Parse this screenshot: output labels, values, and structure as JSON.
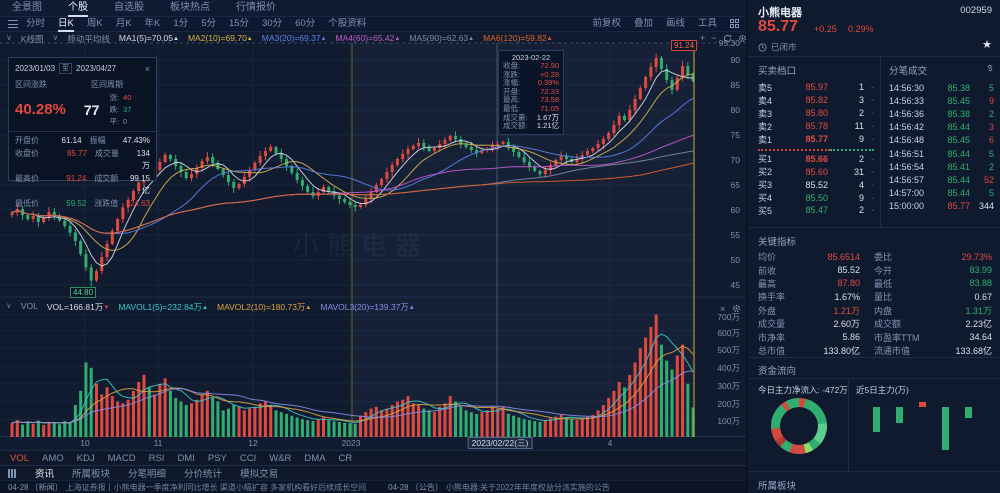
{
  "colors": {
    "up": "#e2493e",
    "down": "#2fae6f",
    "flat": "#d8e0ee",
    "yellow": "#c9a227"
  },
  "topnav": {
    "items": [
      {
        "label": "全景图",
        "active": false
      },
      {
        "label": "个股",
        "active": true
      },
      {
        "label": "自选股",
        "active": false
      },
      {
        "label": "板块热点",
        "active": false
      },
      {
        "label": "行情报价",
        "active": false
      }
    ]
  },
  "toolbar": {
    "left": [
      {
        "label": "分时",
        "active": false
      },
      {
        "label": "日K",
        "active": true
      },
      {
        "label": "周K",
        "active": false
      },
      {
        "label": "月K",
        "active": false
      },
      {
        "label": "年K",
        "active": false
      },
      {
        "label": "1分",
        "active": false
      },
      {
        "label": "5分",
        "active": false
      },
      {
        "label": "15分",
        "active": false
      },
      {
        "label": "30分",
        "active": false
      },
      {
        "label": "60分",
        "active": false
      },
      {
        "label": "个股资料",
        "active": false
      }
    ],
    "right": [
      "前复权",
      "叠加",
      "画线",
      "工具"
    ]
  },
  "legend": {
    "caret": "∨",
    "kline_label": "K线图",
    "ma_label": "移动平均线",
    "entries": [
      {
        "text": "MA1(5)=70.05",
        "color": "#d8dde8"
      },
      {
        "text": "MA2(10)=69.70",
        "color": "#d9b44a"
      },
      {
        "text": "MA3(20)=69.37",
        "color": "#5c82e8"
      },
      {
        "text": "MA4(60)=65.42",
        "color": "#c45ad2"
      },
      {
        "text": "MA5(90)=62.63",
        "color": "#7d8ca6"
      },
      {
        "text": "MA6(120)=59.82",
        "color": "#e2622b"
      }
    ]
  },
  "vol_legend": {
    "caret": "∨",
    "vol_label": "VOL",
    "entries": [
      {
        "text": "VOL=166.81万",
        "arrow": "▼",
        "color": "#d8dde8",
        "arrow_color": "#e2493e"
      },
      {
        "text": "MAVOL1(5)=232.84万",
        "arrow": "▲",
        "color": "#3cc8c8",
        "arrow_color": "#3cc8c8"
      },
      {
        "text": "MAVOL2(10)=180.73万",
        "arrow": "▲",
        "color": "#dca43e",
        "arrow_color": "#dca43e"
      },
      {
        "text": "MAVOL3(20)=139.37万",
        "arrow": "▲",
        "color": "#8a8ce8",
        "arrow_color": "#8a8ce8"
      }
    ]
  },
  "range_panel": {
    "start": "2023/01/03",
    "to": "至",
    "end": "2023/04/27",
    "close": "×",
    "chg_label": "区间涨跌",
    "period_label": "区间周期",
    "chg": "40.28%",
    "period": "77",
    "up_label": "涨:",
    "up": "40",
    "down_label": "跌:",
    "down": "37",
    "flat_label": "平:",
    "flat": "0",
    "rows": [
      {
        "l1": "开盘价",
        "v1": "61.14",
        "c1": "flat",
        "l2": "振幅",
        "v2": "47.43%",
        "c2": "flat"
      },
      {
        "l1": "收盘价",
        "v1": "85.77",
        "c1": "up",
        "l2": "成交量",
        "v2": "134万",
        "c2": "flat"
      },
      {
        "l1": "最高价",
        "v1": "91.24",
        "c1": "up",
        "l2": "成交额",
        "v2": "99.15亿",
        "c2": "flat"
      },
      {
        "l1": "最低价",
        "v1": "59.52",
        "c1": "down",
        "l2": "涨跌值",
        "v2": "24.63",
        "c2": "up"
      }
    ]
  },
  "tooltip": {
    "date": "2023-02-22",
    "rows": [
      {
        "label": "收盘:",
        "value": "72.90",
        "color": "up"
      },
      {
        "label": "涨跌:",
        "value": "+0.28",
        "color": "up"
      },
      {
        "label": "涨幅:",
        "value": "0.39%",
        "color": "up"
      },
      {
        "label": "开盘:",
        "value": "72.33",
        "color": "up"
      },
      {
        "label": "最高:",
        "value": "73.58",
        "color": "up"
      },
      {
        "label": "最低:",
        "value": "71.05",
        "color": "up"
      },
      {
        "label": "成交量:",
        "value": "1.67万",
        "color": "flat"
      },
      {
        "label": "成交额:",
        "value": "1.21亿",
        "color": "flat"
      }
    ]
  },
  "markers": {
    "high": "91.24",
    "low": "44.80"
  },
  "indicator_tabs": [
    {
      "label": "VOL",
      "active": true
    },
    {
      "label": "AMO",
      "active": false
    },
    {
      "label": "KDJ",
      "active": false
    },
    {
      "label": "MACD",
      "active": false
    },
    {
      "label": "RSI",
      "active": false
    },
    {
      "label": "DMI",
      "active": false
    },
    {
      "label": "PSY",
      "active": false
    },
    {
      "label": "CCI",
      "active": false
    },
    {
      "label": "W&R",
      "active": false
    },
    {
      "label": "DMA",
      "active": false
    },
    {
      "label": "CR",
      "active": false
    }
  ],
  "bottom_tabs": [
    {
      "label": "资讯",
      "active": true
    },
    {
      "label": "所属板块",
      "active": false
    },
    {
      "label": "分笔明细",
      "active": false
    },
    {
      "label": "分价统计",
      "active": false
    },
    {
      "label": "模拟交易",
      "active": false
    }
  ],
  "ticker": [
    {
      "date": "04-28",
      "tag": "〔新闻〕",
      "text": "上海证券报丨小熊电器一季度净利同比增长 渠道小幅扩容 多家机构看好后续成长空间"
    },
    {
      "date": "04-28",
      "tag": "〔公告〕",
      "text": "小熊电器:关于2022年年度权益分派实施的公告"
    }
  ],
  "stock": {
    "name": "小熊电器",
    "code": "002959",
    "price": "85.77",
    "change": "+0.25",
    "pct": "0.29%",
    "status": "已闭市",
    "star": "★"
  },
  "order_book": {
    "title": "买卖档口",
    "prev_close": 85.52,
    "asks": [
      {
        "level": "卖5",
        "price": "85.97",
        "count": "1"
      },
      {
        "level": "卖4",
        "price": "85.82",
        "count": "3"
      },
      {
        "level": "卖3",
        "price": "85.80",
        "count": "2"
      },
      {
        "level": "卖2",
        "price": "85.78",
        "count": "11"
      },
      {
        "level": "卖1",
        "price": "85.77",
        "count": "9"
      }
    ],
    "bids": [
      {
        "level": "买1",
        "price": "85.66",
        "count": "2"
      },
      {
        "level": "买2",
        "price": "85.60",
        "count": "31"
      },
      {
        "level": "买3",
        "price": "85.52",
        "count": "4"
      },
      {
        "level": "买4",
        "price": "85.50",
        "count": "9"
      },
      {
        "level": "买5",
        "price": "85.47",
        "count": "2"
      }
    ]
  },
  "tick_list": {
    "title": "分笔成交",
    "rows": [
      {
        "time": "14:56:30",
        "price": "85.38",
        "pc": "down",
        "count": "5",
        "cc": "down"
      },
      {
        "time": "14:56:33",
        "price": "85.45",
        "pc": "down",
        "count": "9",
        "cc": "up"
      },
      {
        "time": "14:56:36",
        "price": "85.38",
        "pc": "down",
        "count": "2",
        "cc": "down"
      },
      {
        "time": "14:56:42",
        "price": "85.44",
        "pc": "down",
        "count": "3",
        "cc": "up"
      },
      {
        "time": "14:56:48",
        "price": "85.45",
        "pc": "down",
        "count": "6",
        "cc": "up"
      },
      {
        "time": "14:56:51",
        "price": "85.44",
        "pc": "down",
        "count": "5",
        "cc": "down"
      },
      {
        "time": "14:56:54",
        "price": "85.41",
        "pc": "down",
        "count": "2",
        "cc": "down"
      },
      {
        "time": "14:56:57",
        "price": "85.44",
        "pc": "down",
        "count": "52",
        "cc": "up"
      },
      {
        "time": "14:57:00",
        "price": "85.44",
        "pc": "down",
        "count": "5",
        "cc": "down"
      },
      {
        "time": "15:00:00",
        "price": "85.77",
        "pc": "up",
        "count": "344",
        "cc": "flat"
      }
    ]
  },
  "key_stats": {
    "title": "关键指标",
    "rows": [
      {
        "l1": "均价",
        "v1": "85.6514",
        "c1": "up",
        "l2": "委比",
        "v2": "29.73%",
        "c2": "up"
      },
      {
        "l1": "前收",
        "v1": "85.52",
        "c1": "flat",
        "l2": "今开",
        "v2": "83.99",
        "c2": "down"
      },
      {
        "l1": "最高",
        "v1": "87.80",
        "c1": "up",
        "l2": "最低",
        "v2": "83.88",
        "c2": "down"
      },
      {
        "l1": "换手率",
        "v1": "1.67%",
        "c1": "flat",
        "l2": "量比",
        "v2": "0.67",
        "c2": "flat"
      },
      {
        "l1": "外盘",
        "v1": "1.21万",
        "c1": "up",
        "l2": "内盘",
        "v2": "1.31万",
        "c2": "down"
      },
      {
        "l1": "成交量",
        "v1": "2.60万",
        "c1": "flat",
        "l2": "成交额",
        "v2": "2.23亿",
        "c2": "flat"
      },
      {
        "l1": "市净率",
        "v1": "5.86",
        "c1": "flat",
        "l2": "市盈率TTM",
        "v2": "34.64",
        "c2": "flat"
      },
      {
        "l1": "总市值",
        "v1": "133.80亿",
        "c1": "flat",
        "l2": "流通市值",
        "v2": "133.68亿",
        "c2": "flat"
      }
    ]
  },
  "fund_flow": {
    "title": "资金流向",
    "today_label": "今日主力净流入: -472万",
    "five_label": "近5日主力(万)",
    "bars": [
      -300,
      -190,
      60,
      -520,
      -130
    ],
    "donut": [
      {
        "c": "#d24b41",
        "d": 14
      },
      {
        "c": "#2fae6f",
        "d": 70
      },
      {
        "c": "#5ecb8f",
        "d": 46
      },
      {
        "c": "#2fae6f",
        "d": 20
      },
      {
        "c": "#8fdc6a",
        "d": 16
      },
      {
        "c": "#d24b41",
        "d": 34
      },
      {
        "c": "#2fae6f",
        "d": 22
      },
      {
        "c": "#b03a30",
        "d": 16
      },
      {
        "c": "#d24b41",
        "d": 26
      },
      {
        "c": "#2fae6f",
        "d": 56
      },
      {
        "c": "#d24b41",
        "d": 12
      },
      {
        "c": "#2fae6f",
        "d": 28
      }
    ]
  },
  "sectors": {
    "title": "所属板块"
  },
  "chart_data": {
    "type": "candlestick",
    "title": "小熊电器 日K",
    "watermark": "小熊电器",
    "x0": 12,
    "dx": 5.28,
    "price_axis": {
      "min": 45,
      "max": 95.3,
      "ticks": [
        "95.30",
        "90",
        "85",
        "80",
        "75",
        "70",
        "65",
        "60",
        "55",
        "50",
        "45"
      ]
    },
    "vol_axis": {
      "ticks": [
        "700万",
        "600万",
        "500万",
        "400万",
        "300万",
        "200万",
        "100万"
      ]
    },
    "x_ticks": [
      {
        "label": "10",
        "x": 85,
        "boxed": false
      },
      {
        "label": "11",
        "x": 158,
        "boxed": false
      },
      {
        "label": "12",
        "x": 253,
        "boxed": false
      },
      {
        "label": "2023",
        "x": 351,
        "boxed": false
      },
      {
        "label": "2023/02/22(三)",
        "x": 500,
        "boxed": true
      },
      {
        "label": "4",
        "x": 610,
        "boxed": false
      }
    ],
    "selection": {
      "x1": 352,
      "x2": 694
    },
    "crosshair_x": 497,
    "high_marker": {
      "index": 122,
      "price": 91.24
    },
    "low_marker": {
      "index": 15,
      "price": 44.8
    },
    "ma": {
      "windows": [
        5,
        10,
        20,
        60,
        90,
        120
      ],
      "colors": [
        "#d8dde8",
        "#d9b44a",
        "#5c82e8",
        "#c45ad2",
        "#7d8ca6",
        "#e2622b"
      ]
    },
    "mavol": {
      "windows": [
        5,
        10,
        20
      ],
      "colors": [
        "#3cc8c8",
        "#dca43e",
        "#8a8ce8"
      ]
    },
    "closes": [
      59.5,
      60.2,
      59.0,
      58.2,
      58.8,
      57.6,
      58.4,
      59.6,
      58.8,
      57.9,
      56.8,
      55.5,
      53.8,
      51.2,
      48.5,
      45.9,
      47.8,
      50.6,
      53.2,
      55.8,
      58.2,
      60.5,
      62.0,
      63.8,
      65.5,
      67.2,
      66.4,
      68.0,
      69.6,
      71.0,
      70.2,
      68.8,
      67.6,
      66.4,
      67.2,
      68.4,
      69.8,
      70.6,
      69.4,
      68.2,
      67.0,
      65.6,
      64.4,
      65.2,
      66.6,
      68.0,
      69.4,
      70.8,
      71.8,
      72.6,
      71.4,
      70.2,
      68.8,
      67.4,
      66.0,
      64.8,
      63.6,
      62.8,
      63.6,
      64.6,
      63.8,
      62.9,
      62.2,
      61.6,
      61.0,
      60.6,
      61.1,
      62.2,
      63.6,
      65.0,
      66.2,
      67.6,
      69.0,
      70.2,
      71.2,
      72.2,
      72.8,
      73.4,
      72.6,
      71.8,
      72.4,
      73.2,
      74.0,
      74.8,
      74.2,
      73.2,
      72.6,
      72.0,
      71.4,
      72.0,
      72.3,
      72.9,
      73.2,
      73.6,
      72.6,
      71.6,
      70.6,
      69.6,
      68.6,
      67.8,
      67.2,
      68.0,
      69.0,
      70.0,
      70.8,
      70.2,
      69.6,
      70.2,
      71.0,
      71.8,
      72.4,
      73.2,
      74.2,
      75.4,
      77.0,
      78.8,
      78.0,
      80.0,
      82.2,
      84.4,
      86.6,
      88.6,
      90.4,
      88.2,
      86.0,
      84.0,
      86.4,
      88.8,
      87.0,
      85.77
    ],
    "volumes": [
      80,
      95,
      70,
      88,
      75,
      92,
      68,
      85,
      78,
      72,
      90,
      84,
      180,
      260,
      420,
      390,
      300,
      240,
      280,
      230,
      200,
      190,
      210,
      260,
      310,
      350,
      280,
      240,
      300,
      330,
      260,
      220,
      200,
      180,
      190,
      210,
      240,
      260,
      220,
      200,
      150,
      160,
      180,
      170,
      150,
      160,
      170,
      190,
      200,
      180,
      150,
      140,
      130,
      120,
      110,
      100,
      95,
      90,
      100,
      110,
      95,
      88,
      85,
      80,
      78,
      75,
      120,
      140,
      160,
      170,
      150,
      160,
      180,
      200,
      210,
      230,
      190,
      180,
      160,
      150,
      140,
      170,
      190,
      230,
      200,
      170,
      150,
      140,
      130,
      140,
      150,
      167,
      160,
      170,
      130,
      120,
      110,
      100,
      95,
      90,
      85,
      95,
      105,
      115,
      125,
      110,
      100,
      95,
      105,
      115,
      125,
      150,
      180,
      220,
      260,
      310,
      280,
      350,
      420,
      500,
      560,
      620,
      700,
      520,
      430,
      380,
      460,
      520,
      300,
      167
    ]
  }
}
